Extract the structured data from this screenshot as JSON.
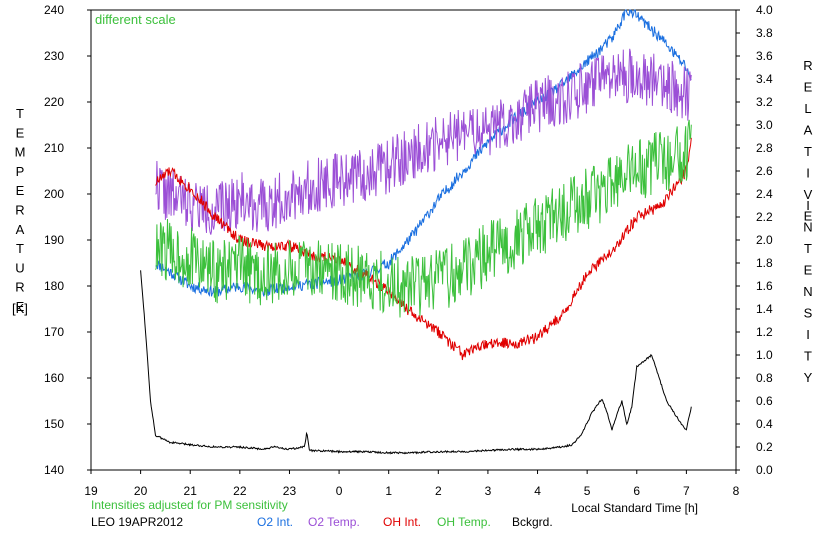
{
  "chart_data": {
    "type": "line",
    "annotation": "different scale",
    "note": "Intensities adjusted for PM sensitivity",
    "station_label": "LEO 19APR2012",
    "xlabel": "Local Standard Time [h]",
    "ylabel_left": "TEMPERATURE",
    "ylabel_left_unit": "[K]",
    "ylabel_right_1": "RELATIVE",
    "ylabel_right_2": "INTENSITY",
    "x_ticks": [
      "19",
      "20",
      "21",
      "22",
      "23",
      "0",
      "1",
      "2",
      "3",
      "4",
      "5",
      "6",
      "7",
      "8"
    ],
    "xlim": [
      19,
      32
    ],
    "ylim_left": [
      140,
      240
    ],
    "ylim_right": [
      0.0,
      4.0
    ],
    "y_left_ticks": [
      140,
      150,
      160,
      170,
      180,
      190,
      200,
      210,
      220,
      230,
      240
    ],
    "y_right_ticks": [
      "0.0",
      "0.2",
      "0.4",
      "0.6",
      "0.8",
      "1.0",
      "1.2",
      "1.4",
      "1.6",
      "1.8",
      "2.0",
      "2.2",
      "2.4",
      "2.6",
      "2.8",
      "3.0",
      "3.2",
      "3.4",
      "3.6",
      "3.8",
      "4.0"
    ],
    "grid": false,
    "legend_position": "bottom",
    "series": [
      {
        "name": "O2 Int.",
        "axis": "right",
        "color": "#1a6fe0",
        "x": [
          20.3,
          20.5,
          21.0,
          21.5,
          22.0,
          22.5,
          23.0,
          23.5,
          24.0,
          24.5,
          25.0,
          25.5,
          26.0,
          26.5,
          27.0,
          27.5,
          28.0,
          28.5,
          29.0,
          29.5,
          29.8,
          30.0,
          30.5,
          31.0,
          31.1
        ],
        "y": [
          1.8,
          1.75,
          1.6,
          1.55,
          1.6,
          1.55,
          1.6,
          1.62,
          1.65,
          1.7,
          1.8,
          2.05,
          2.35,
          2.6,
          2.85,
          3.05,
          3.2,
          3.35,
          3.55,
          3.75,
          4.0,
          3.95,
          3.75,
          3.5,
          3.4
        ]
      },
      {
        "name": "O2 Temp.",
        "axis": "left",
        "color": "#9b4fd6",
        "x": [
          20.3,
          20.5,
          21.0,
          21.5,
          22.0,
          22.5,
          23.0,
          23.5,
          24.0,
          24.5,
          25.0,
          25.5,
          26.0,
          26.5,
          27.0,
          27.5,
          28.0,
          28.5,
          29.0,
          29.5,
          30.0,
          30.5,
          31.0,
          31.1
        ],
        "y": [
          203,
          200,
          198,
          196,
          199,
          197,
          200,
          202,
          203,
          204,
          206,
          209,
          211,
          213,
          214,
          216,
          219,
          221,
          223,
          225,
          226,
          224,
          222,
          221
        ]
      },
      {
        "name": "OH Int.",
        "axis": "right",
        "color": "#e00000",
        "x": [
          20.3,
          20.6,
          21.0,
          21.5,
          22.0,
          22.5,
          23.0,
          23.5,
          24.0,
          24.5,
          25.0,
          25.5,
          26.0,
          26.5,
          27.0,
          27.5,
          28.0,
          28.5,
          29.0,
          29.5,
          30.0,
          30.5,
          31.0,
          31.1
        ],
        "y": [
          2.5,
          2.6,
          2.45,
          2.2,
          2.0,
          1.95,
          1.95,
          1.85,
          1.85,
          1.7,
          1.55,
          1.35,
          1.2,
          1.0,
          1.1,
          1.1,
          1.15,
          1.35,
          1.7,
          1.9,
          2.2,
          2.3,
          2.6,
          2.9
        ]
      },
      {
        "name": "OH Temp.",
        "axis": "left",
        "color": "#3cc03c",
        "x": [
          20.3,
          20.5,
          21.0,
          21.5,
          22.0,
          22.5,
          23.0,
          23.5,
          24.0,
          24.5,
          25.0,
          25.5,
          26.0,
          26.5,
          27.0,
          27.5,
          28.0,
          28.5,
          29.0,
          29.5,
          30.0,
          30.5,
          31.0,
          31.1
        ],
        "y": [
          187,
          188,
          186,
          183,
          184,
          182,
          183,
          184,
          183,
          182,
          180,
          180,
          181,
          184,
          187,
          190,
          193,
          196,
          199,
          202,
          205,
          207,
          209,
          210
        ]
      },
      {
        "name": "Bckgrd.",
        "axis": "right",
        "color": "#000000",
        "x": [
          20.0,
          20.1,
          20.2,
          20.3,
          20.6,
          21.0,
          21.5,
          22.0,
          22.5,
          22.7,
          23.0,
          23.3,
          23.35,
          23.4,
          24.0,
          24.5,
          25.0,
          25.5,
          26.0,
          26.5,
          27.0,
          27.5,
          28.0,
          28.5,
          28.7,
          28.9,
          29.1,
          29.3,
          29.4,
          29.5,
          29.6,
          29.7,
          29.8,
          29.9,
          30.0,
          30.3,
          30.6,
          30.9,
          31.0,
          31.1
        ],
        "y": [
          1.74,
          1.2,
          0.6,
          0.3,
          0.24,
          0.22,
          0.2,
          0.2,
          0.18,
          0.2,
          0.18,
          0.2,
          0.33,
          0.17,
          0.16,
          0.16,
          0.15,
          0.15,
          0.16,
          0.16,
          0.17,
          0.18,
          0.18,
          0.2,
          0.22,
          0.32,
          0.5,
          0.62,
          0.5,
          0.35,
          0.48,
          0.6,
          0.4,
          0.55,
          0.9,
          1.0,
          0.6,
          0.4,
          0.35,
          0.55
        ]
      }
    ]
  }
}
